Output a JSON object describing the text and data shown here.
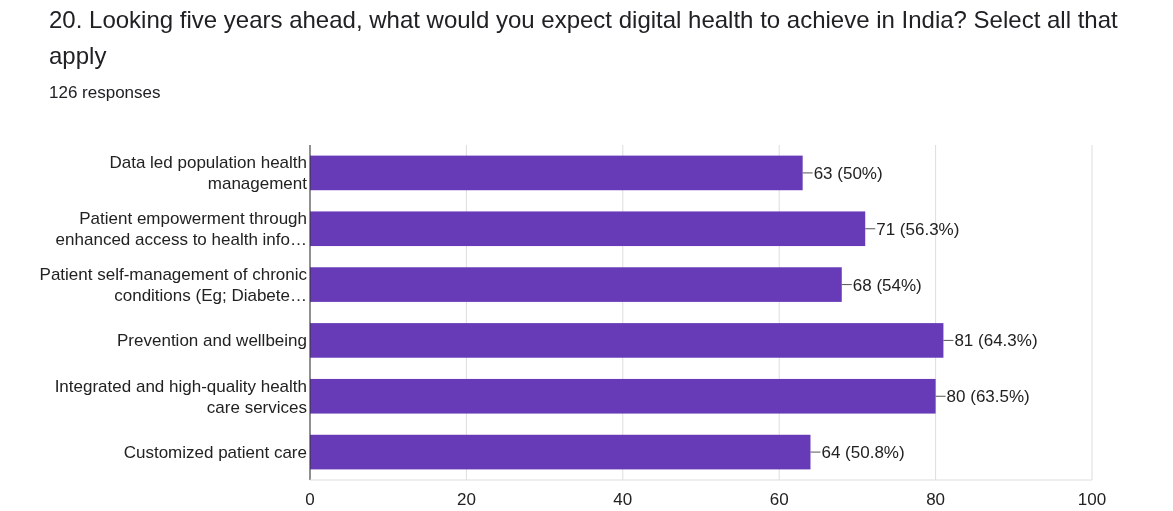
{
  "chart_data": {
    "type": "bar",
    "orientation": "horizontal",
    "title": "20. Looking five years ahead, what would you expect digital health to achieve in India?  Select all that apply",
    "subtitle": "126 responses",
    "categories": [
      "Data led population health management",
      "Patient empowerment through enhanced access to health info…",
      "Patient self-management of chronic conditions (Eg; Diabete…",
      "Prevention and wellbeing",
      "Integrated and high-quality health care services",
      "Customized patient care"
    ],
    "values": [
      63,
      71,
      68,
      81,
      80,
      64
    ],
    "value_labels": [
      "63 (50%)",
      "71 (56.3%)",
      "68 (54%)",
      "81 (64.3%)",
      "80 (63.5%)",
      "64 (50.8%)"
    ],
    "color": "#673ab7",
    "xlim": [
      0,
      100
    ],
    "xticks": [
      0,
      20,
      40,
      60,
      80,
      100
    ],
    "grid": "x"
  }
}
